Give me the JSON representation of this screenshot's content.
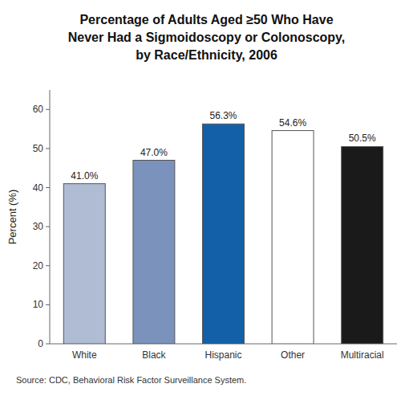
{
  "chart_data": {
    "type": "bar",
    "title": "Percentage of Adults Aged ≥50 Who Have\nNever Had a Sigmoidoscopy or Colonoscopy,\nby Race/Ethnicity, 2006",
    "categories": [
      "White",
      "Black",
      "Hispanic",
      "Other",
      "Multiracial"
    ],
    "values": [
      41.0,
      47.0,
      56.3,
      54.6,
      50.5
    ],
    "value_labels": [
      "41.0%",
      "47.0%",
      "56.3%",
      "54.6%",
      "50.5%"
    ],
    "data_labels": true,
    "colors": [
      "#b0bcd4",
      "#7b93bc",
      "#1460a8",
      "#ffffff",
      "#1a1a1a"
    ],
    "ylabel": "Percent (%)",
    "ylim": [
      0,
      65
    ],
    "yticks": [
      0,
      10,
      20,
      30,
      40,
      50,
      60
    ],
    "grid": false,
    "annotations": [
      "Source: CDC, Behavioral Risk Factor Surveillance System."
    ]
  }
}
